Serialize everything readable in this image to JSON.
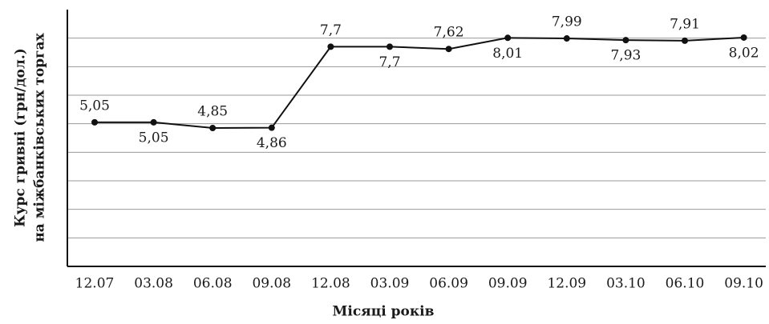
{
  "chart_data": {
    "type": "line",
    "y_label_lines": [
      "Курс гривні (грн/дол.)",
      "на міжбанківських торгах"
    ],
    "x_label": "Місяці років",
    "categories": [
      "12.07",
      "03.08",
      "06.08",
      "09.08",
      "12.08",
      "03.09",
      "06.09",
      "09.09",
      "12.09",
      "03.10",
      "06.10",
      "09.10"
    ],
    "values": [
      5.05,
      5.05,
      4.85,
      4.86,
      7.7,
      7.7,
      7.62,
      8.01,
      7.99,
      7.93,
      7.91,
      8.02
    ],
    "value_labels": [
      "5,05",
      "5,05",
      "4,85",
      "4,86",
      "7,7",
      "7,7",
      "7,62",
      "8,01",
      "7,99",
      "7,93",
      "7,91",
      "8,02"
    ],
    "color": "#111111",
    "ylim": [
      0,
      9
    ],
    "yticks": [
      1,
      2,
      3,
      4,
      5,
      6,
      7,
      8
    ],
    "ytick_labels": false,
    "grid": true
  }
}
